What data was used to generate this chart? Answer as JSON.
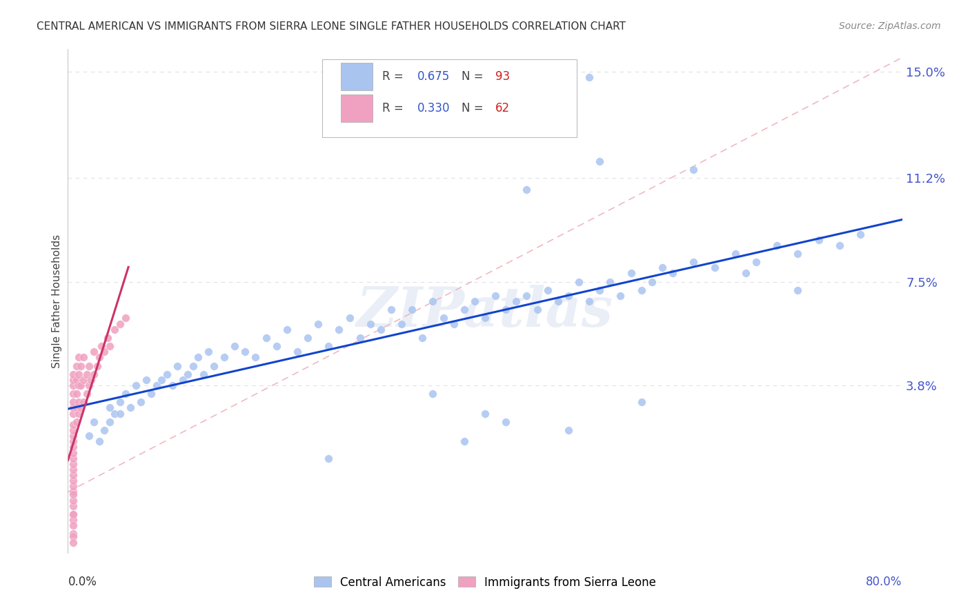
{
  "title": "CENTRAL AMERICAN VS IMMIGRANTS FROM SIERRA LEONE SINGLE FATHER HOUSEHOLDS CORRELATION CHART",
  "source": "Source: ZipAtlas.com",
  "ylabel": "Single Father Households",
  "ytick_vals": [
    0.038,
    0.075,
    0.112,
    0.15
  ],
  "ytick_labels": [
    "3.8%",
    "7.5%",
    "11.2%",
    "15.0%"
  ],
  "xmin": 0.0,
  "xmax": 0.8,
  "ymin": -0.022,
  "ymax": 0.158,
  "blue_R": 0.675,
  "blue_N": 93,
  "pink_R": 0.33,
  "pink_N": 62,
  "blue_color": "#aac4f0",
  "pink_color": "#f0a0c0",
  "blue_line_color": "#1144cc",
  "pink_line_color": "#cc3366",
  "diag_color": "#f0b8c0",
  "legend_label_blue": "Central Americans",
  "legend_label_pink": "Immigrants from Sierra Leone",
  "watermark": "ZIPatlas",
  "background_color": "#ffffff",
  "grid_color": "#e0e0e8",
  "ytick_color": "#4455cc",
  "blue_x": [
    0.02,
    0.025,
    0.03,
    0.035,
    0.04,
    0.04,
    0.045,
    0.05,
    0.05,
    0.055,
    0.06,
    0.065,
    0.07,
    0.075,
    0.08,
    0.085,
    0.09,
    0.095,
    0.1,
    0.105,
    0.11,
    0.115,
    0.12,
    0.125,
    0.13,
    0.135,
    0.14,
    0.15,
    0.16,
    0.17,
    0.18,
    0.19,
    0.2,
    0.21,
    0.22,
    0.23,
    0.24,
    0.25,
    0.26,
    0.27,
    0.28,
    0.29,
    0.3,
    0.31,
    0.32,
    0.33,
    0.34,
    0.35,
    0.36,
    0.37,
    0.38,
    0.39,
    0.4,
    0.41,
    0.42,
    0.43,
    0.44,
    0.45,
    0.46,
    0.47,
    0.48,
    0.49,
    0.5,
    0.51,
    0.52,
    0.53,
    0.54,
    0.55,
    0.56,
    0.57,
    0.58,
    0.6,
    0.62,
    0.64,
    0.66,
    0.68,
    0.7,
    0.72,
    0.74,
    0.76,
    0.51,
    0.6,
    0.44,
    0.5,
    0.65,
    0.7,
    0.35,
    0.4,
    0.55,
    0.42,
    0.48,
    0.38,
    0.25
  ],
  "blue_y": [
    0.02,
    0.025,
    0.018,
    0.022,
    0.025,
    0.03,
    0.028,
    0.032,
    0.028,
    0.035,
    0.03,
    0.038,
    0.032,
    0.04,
    0.035,
    0.038,
    0.04,
    0.042,
    0.038,
    0.045,
    0.04,
    0.042,
    0.045,
    0.048,
    0.042,
    0.05,
    0.045,
    0.048,
    0.052,
    0.05,
    0.048,
    0.055,
    0.052,
    0.058,
    0.05,
    0.055,
    0.06,
    0.052,
    0.058,
    0.062,
    0.055,
    0.06,
    0.058,
    0.065,
    0.06,
    0.065,
    0.055,
    0.068,
    0.062,
    0.06,
    0.065,
    0.068,
    0.062,
    0.07,
    0.065,
    0.068,
    0.07,
    0.065,
    0.072,
    0.068,
    0.07,
    0.075,
    0.068,
    0.072,
    0.075,
    0.07,
    0.078,
    0.072,
    0.075,
    0.08,
    0.078,
    0.082,
    0.08,
    0.085,
    0.082,
    0.088,
    0.085,
    0.09,
    0.088,
    0.092,
    0.118,
    0.115,
    0.108,
    0.148,
    0.078,
    0.072,
    0.035,
    0.028,
    0.032,
    0.025,
    0.022,
    0.018,
    0.012
  ],
  "pink_x": [
    0.005,
    0.005,
    0.005,
    0.005,
    0.005,
    0.005,
    0.005,
    0.005,
    0.005,
    0.005,
    0.005,
    0.005,
    0.005,
    0.005,
    0.005,
    0.005,
    0.005,
    0.005,
    0.005,
    0.005,
    0.008,
    0.008,
    0.008,
    0.008,
    0.008,
    0.01,
    0.01,
    0.01,
    0.01,
    0.01,
    0.012,
    0.012,
    0.012,
    0.015,
    0.015,
    0.015,
    0.018,
    0.018,
    0.02,
    0.02,
    0.022,
    0.025,
    0.025,
    0.028,
    0.03,
    0.032,
    0.035,
    0.038,
    0.04,
    0.045,
    0.05,
    0.055,
    0.005,
    0.005,
    0.005,
    0.005,
    0.005,
    0.005,
    0.005,
    0.005,
    0.005,
    0.005
  ],
  "pink_y": [
    0.0,
    0.002,
    0.004,
    0.006,
    0.008,
    0.01,
    0.012,
    0.014,
    0.016,
    0.018,
    0.02,
    0.022,
    0.024,
    0.028,
    0.03,
    0.032,
    0.035,
    0.038,
    0.04,
    0.042,
    0.025,
    0.03,
    0.035,
    0.04,
    0.045,
    0.028,
    0.032,
    0.038,
    0.042,
    0.048,
    0.03,
    0.038,
    0.045,
    0.032,
    0.04,
    0.048,
    0.035,
    0.042,
    0.038,
    0.045,
    0.04,
    0.042,
    0.05,
    0.045,
    0.048,
    0.052,
    0.05,
    0.055,
    0.052,
    0.058,
    0.06,
    0.062,
    -0.005,
    -0.008,
    -0.01,
    -0.012,
    -0.015,
    -0.016,
    -0.018,
    -0.008,
    -0.003,
    -0.001
  ]
}
